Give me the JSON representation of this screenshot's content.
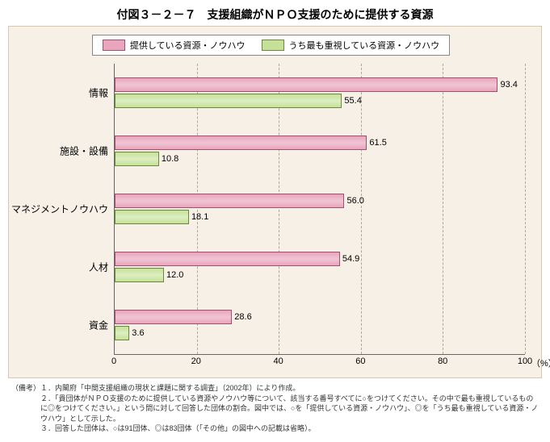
{
  "title": "付図３－２－７　支援組織がＮＰＯ支援のために提供する資源",
  "legend": {
    "series1": "提供している資源・ノウハウ",
    "series2": "うち最も重視している資源・ノウハウ"
  },
  "chart": {
    "type": "bar-horizontal-grouped",
    "xmax": 100,
    "xtick_step": 20,
    "xticks": [
      "0",
      "20",
      "40",
      "60",
      "80",
      "100"
    ],
    "x_unit": "（%）",
    "background_color": "#f7f0e7",
    "grid_color": "#b0a890",
    "series_colors": {
      "s1_fill": "#e9a5bb",
      "s1_stroke": "#a05070",
      "s2_fill": "#c6e09a",
      "s2_stroke": "#6a8a3a"
    },
    "categories": [
      {
        "label": "情報",
        "s1": 93.4,
        "s2": 55.4
      },
      {
        "label": "施設・設備",
        "s1": 61.5,
        "s2": 10.8
      },
      {
        "label": "マネジメントノウハウ",
        "s1": 56.0,
        "s2": 18.1
      },
      {
        "label": "人材",
        "s1": 54.9,
        "s2": 12.0
      },
      {
        "label": "資金",
        "s1": 28.6,
        "s2": 3.6
      }
    ]
  },
  "notes": {
    "head": "（備考）",
    "items": [
      "１．内閣府「中間支援組織の現状と課題に関する調査」（2002年）により作成。",
      "２．「貴団体がＮＰＯ支援のために提供している資源やノウハウ等について、該当する番号すべてに○をつけてください。その中で最も重視しているものに◎をつけてください。」という問に対して回答した団体の割合。図中では、○を「提供している資源・ノウハウ」、◎を「うち最も重視している資源・ノウハウ」として示した。",
      "３．回答した団体は、○は91団体、◎は83団体（「その他」の図中への記載は省略）。"
    ]
  }
}
